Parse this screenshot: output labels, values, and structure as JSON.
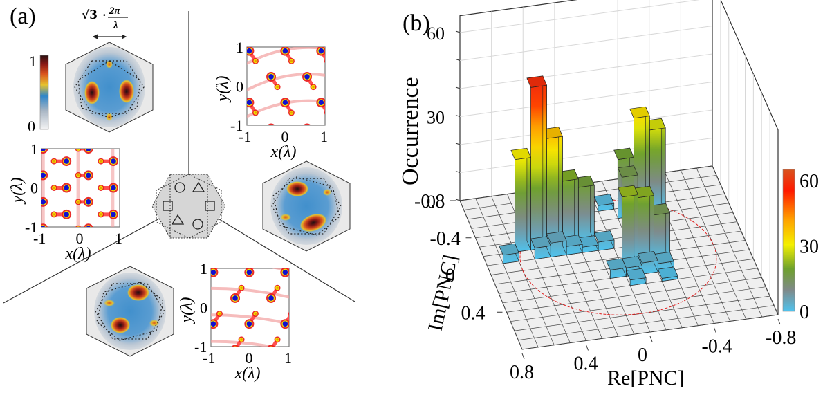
{
  "panel_a": {
    "label": "(a)",
    "scale_bar_label": {
      "sqrt": "√3",
      "dot": "·",
      "num": "2π",
      "den": "λ"
    },
    "colorbar": {
      "min_label": "0",
      "max_label": "1",
      "colors": [
        "#f4f4f4",
        "#a9b6c4",
        "#2f86c9",
        "#e6c22e",
        "#d9531e",
        "#8a1a16",
        "#2a1212"
      ]
    },
    "center_diagram": {
      "symbols": [
        "circle",
        "triangle",
        "square",
        "square",
        "triangle",
        "circle"
      ]
    },
    "sub_panels": [
      {
        "name": "left",
        "x_label": "x(λ)",
        "y_label": "y(λ)",
        "x_ticks": [
          "-1",
          "0",
          "1"
        ],
        "y_ticks": [
          "1",
          "0",
          "-1"
        ],
        "pattern": "vertical-chain"
      },
      {
        "name": "top-right",
        "x_label": "x(λ)",
        "y_label": "y(λ)",
        "x_ticks": [
          "-1",
          "0",
          "1"
        ],
        "y_ticks": [
          "1",
          "0",
          "-1"
        ],
        "pattern": "diagonal-up"
      },
      {
        "name": "bottom",
        "x_label": "x(λ)",
        "y_label": "y(λ)",
        "x_ticks": [
          "-1",
          "0",
          "1"
        ],
        "y_ticks": [
          "1",
          "0",
          "-1"
        ],
        "pattern": "diagonal-down"
      }
    ]
  },
  "chart_data": {
    "type": "bar3d",
    "title": "",
    "panel_label": "(b)",
    "zlabel": "Occurrence",
    "xlabel": "Re[PNC]",
    "ylabel": "Im[PNC]",
    "z_ticks": [
      "0",
      "30",
      "60"
    ],
    "zlim": [
      0,
      70
    ],
    "x_ticks": [
      "0.8",
      "0.4",
      "0",
      "-0.4",
      "-0.8"
    ],
    "y_ticks": [
      "-0.8",
      "-0.4",
      "0",
      "0.4"
    ],
    "xlim": [
      0.8,
      -0.8
    ],
    "ylim": [
      -0.8,
      0.8
    ],
    "grid": true,
    "colorbar": {
      "ticks": [
        "0",
        "30",
        "60"
      ],
      "range": [
        0,
        65
      ],
      "colors": [
        "#4fc3ee",
        "#7f8a8a",
        "#6ea12c",
        "#f4f000",
        "#ffa000",
        "#ff1a00",
        "#d9531e"
      ]
    },
    "bars": [
      {
        "re": 0.55,
        "im": -0.25,
        "value": 33
      },
      {
        "re": 0.45,
        "im": -0.25,
        "value": 58
      },
      {
        "re": 0.35,
        "im": -0.25,
        "value": 39
      },
      {
        "re": 0.25,
        "im": -0.25,
        "value": 23
      },
      {
        "re": 0.15,
        "im": -0.25,
        "value": 20
      },
      {
        "re": 0.65,
        "im": -0.15,
        "value": 3
      },
      {
        "re": 0.45,
        "im": -0.15,
        "value": 4
      },
      {
        "re": 0.35,
        "im": -0.15,
        "value": 5
      },
      {
        "re": 0.25,
        "im": -0.15,
        "value": 3
      },
      {
        "re": 0.15,
        "im": -0.15,
        "value": 2
      },
      {
        "re": 0.05,
        "im": -0.15,
        "value": 3
      },
      {
        "re": -0.05,
        "im": -0.55,
        "value": 2
      },
      {
        "re": -0.15,
        "im": -0.45,
        "value": 21
      },
      {
        "re": -0.25,
        "im": -0.45,
        "value": 35
      },
      {
        "re": -0.35,
        "im": -0.45,
        "value": 30
      },
      {
        "re": -0.15,
        "im": -0.35,
        "value": 18
      },
      {
        "re": -0.25,
        "im": -0.35,
        "value": 5
      },
      {
        "re": -0.05,
        "im": 0.05,
        "value": 25
      },
      {
        "re": -0.15,
        "im": 0.05,
        "value": 24
      },
      {
        "re": -0.25,
        "im": 0.05,
        "value": 17
      },
      {
        "re": 0.05,
        "im": 0.15,
        "value": 3
      },
      {
        "re": -0.05,
        "im": 0.15,
        "value": 3
      },
      {
        "re": -0.15,
        "im": 0.15,
        "value": 4
      },
      {
        "re": -0.25,
        "im": 0.15,
        "value": 3
      },
      {
        "re": -0.05,
        "im": 0.25,
        "value": 2
      },
      {
        "re": -0.25,
        "im": 0.25,
        "value": 1
      }
    ],
    "annotations": [
      {
        "type": "circle",
        "color": "#e02020",
        "style": "dashed",
        "radius": 0.6
      }
    ]
  }
}
